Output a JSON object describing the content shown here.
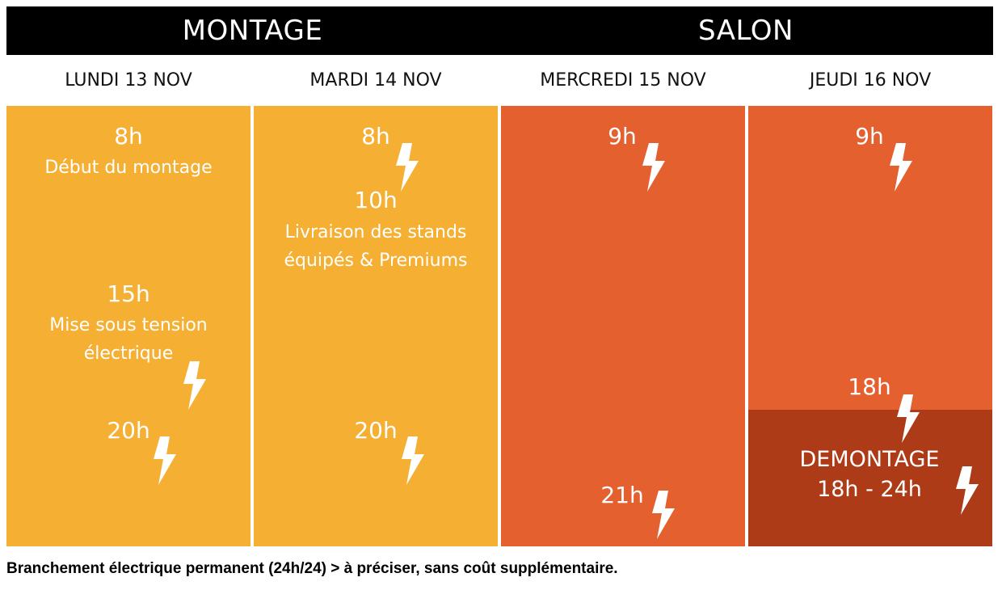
{
  "colors": {
    "header_bg": "#000000",
    "montage": "#F5B033",
    "salon": "#E5602F",
    "demontage": "#AE3B18",
    "text_light": "#FFFFFF"
  },
  "phases": {
    "montage": "MONTAGE",
    "salon": "SALON"
  },
  "days": [
    "LUNDI 13 NOV",
    "MARDI 14 NOV",
    "MERCREDI 15 NOV",
    "JEUDI 16 NOV"
  ],
  "monday": {
    "start_time": "8h",
    "start_desc": "Début du montage",
    "power_time": "15h",
    "power_desc_1": "Mise sous tension",
    "power_desc_2": "électrique",
    "end_time": "20h"
  },
  "tuesday": {
    "start_time": "8h",
    "delivery_time": "10h",
    "delivery_desc_1": "Livraison des stands",
    "delivery_desc_2": "équipés & Premiums",
    "end_time": "20h"
  },
  "wednesday": {
    "start_time": "9h",
    "end_time": "21h"
  },
  "thursday": {
    "start_time": "9h",
    "end_time": "18h",
    "demontage_label": "DEMONTAGE",
    "demontage_hours": "18h - 24h"
  },
  "icon": "lightning-bolt-icon",
  "footer": "Branchement électrique permanent (24h/24) > à préciser, sans coût supplémentaire."
}
